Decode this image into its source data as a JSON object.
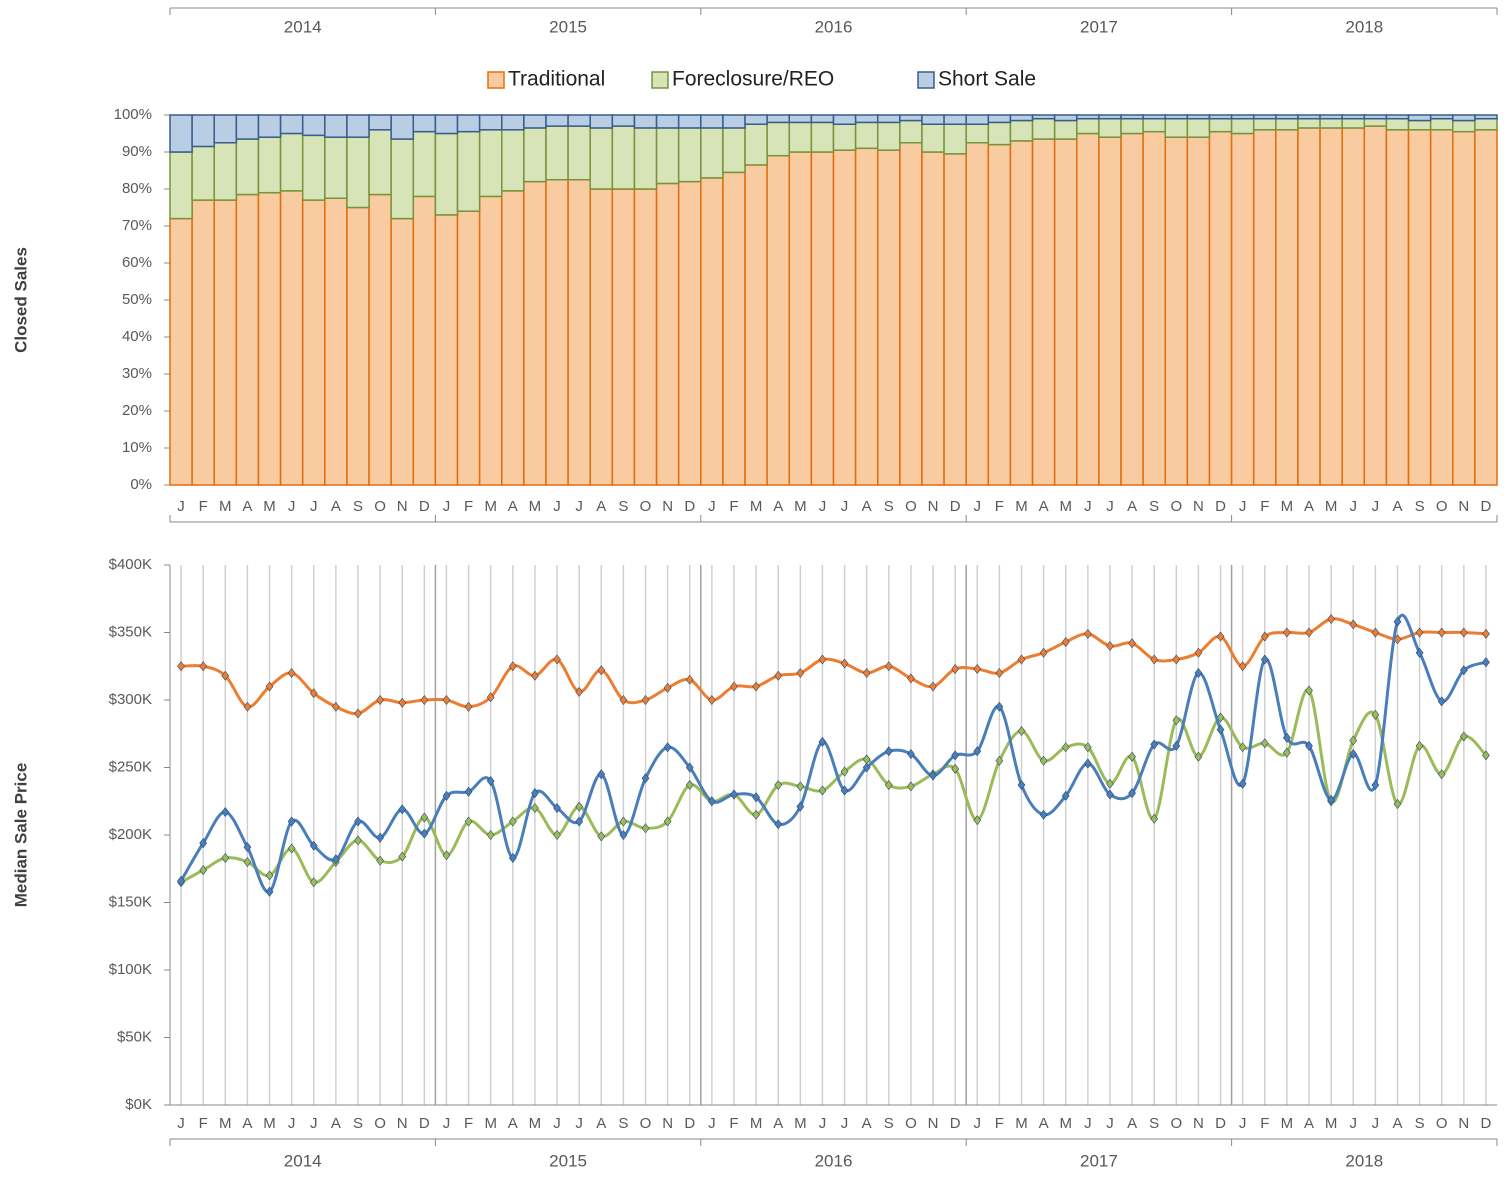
{
  "chart_data": [
    {
      "type": "bar",
      "stacked": true,
      "y_label": "Closed Sales",
      "groups": [
        "2014",
        "2015",
        "2016",
        "2017",
        "2018"
      ],
      "categories": [
        "J",
        "F",
        "M",
        "A",
        "M",
        "J",
        "J",
        "A",
        "S",
        "O",
        "N",
        "D",
        "J",
        "F",
        "M",
        "A",
        "M",
        "J",
        "J",
        "A",
        "S",
        "O",
        "N",
        "D",
        "J",
        "F",
        "M",
        "A",
        "M",
        "J",
        "J",
        "A",
        "S",
        "O",
        "N",
        "D",
        "J",
        "F",
        "M",
        "A",
        "M",
        "J",
        "J",
        "A",
        "S",
        "O",
        "N",
        "D",
        "J",
        "F",
        "M",
        "A",
        "M",
        "J",
        "J",
        "A",
        "S",
        "O",
        "N",
        "D"
      ],
      "ylim": [
        0,
        100
      ],
      "yticks": [
        {
          "value": 0,
          "label": "0%"
        },
        {
          "value": 10,
          "label": "10%"
        },
        {
          "value": 20,
          "label": "20%"
        },
        {
          "value": 30,
          "label": "30%"
        },
        {
          "value": 40,
          "label": "40%"
        },
        {
          "value": 50,
          "label": "50%"
        },
        {
          "value": 60,
          "label": "60%"
        },
        {
          "value": 70,
          "label": "70%"
        },
        {
          "value": 80,
          "label": "80%"
        },
        {
          "value": 90,
          "label": "90%"
        },
        {
          "value": 100,
          "label": "100%"
        }
      ],
      "series": [
        {
          "name": "Traditional",
          "color": "#f9cba1",
          "edge": "#e46c0a",
          "values": [
            72,
            77,
            77,
            78.5,
            79,
            79.5,
            77,
            77.5,
            75,
            78.5,
            72,
            78,
            73,
            74,
            78,
            79.5,
            82,
            82.5,
            82.5,
            80,
            80,
            80,
            81.5,
            82,
            83,
            84.5,
            86.5,
            89,
            90,
            90,
            90.5,
            91,
            90.5,
            92.5,
            90,
            89.5,
            92.5,
            92,
            93,
            93.5,
            93.5,
            95,
            94,
            95,
            95.5,
            94,
            94,
            95.5,
            95,
            96,
            96,
            96.5,
            96.5,
            96.5,
            97,
            96,
            96,
            96,
            95.5,
            96
          ]
        },
        {
          "name": "Foreclosure/REO",
          "color": "#d7e4b7",
          "edge": "#77933c",
          "values": [
            18,
            14.5,
            15.5,
            15,
            15,
            15.5,
            17.5,
            16.5,
            19,
            17.5,
            21.5,
            17.5,
            22,
            21.5,
            18,
            16.5,
            14.5,
            14.5,
            14.5,
            16.5,
            17,
            16.5,
            15,
            14.5,
            13.5,
            12,
            11,
            9,
            8,
            8,
            7,
            7,
            7.5,
            6,
            7.5,
            8,
            5,
            6,
            5.5,
            5.5,
            5,
            4,
            5,
            4,
            3.5,
            5,
            5,
            3.5,
            4,
            3,
            3,
            2.5,
            2.5,
            2.5,
            2,
            3,
            2.5,
            3,
            3,
            3
          ]
        },
        {
          "name": "Short Sale",
          "color": "#b9cde5",
          "edge": "#385d8a",
          "values": [
            10,
            8.5,
            7.5,
            6.5,
            6,
            5,
            5.5,
            6,
            6,
            4,
            6.5,
            4.5,
            5,
            4.5,
            4,
            4,
            3.5,
            3,
            3,
            3.5,
            3,
            3.5,
            3.5,
            3.5,
            3.5,
            3.5,
            2.5,
            2,
            2,
            2,
            2.5,
            2,
            2,
            1.5,
            2.5,
            2.5,
            2.5,
            2,
            1.5,
            1,
            1.5,
            1,
            1,
            1,
            1,
            1,
            1,
            1,
            1,
            1,
            1,
            1,
            1,
            1,
            1,
            1,
            1.5,
            1,
            1.5,
            1
          ]
        }
      ]
    },
    {
      "type": "line",
      "smooth": true,
      "y_label": "Median Sale Price",
      "groups": [
        "2014",
        "2015",
        "2016",
        "2017",
        "2018"
      ],
      "categories": [
        "J",
        "F",
        "M",
        "A",
        "M",
        "J",
        "J",
        "A",
        "S",
        "O",
        "N",
        "D",
        "J",
        "F",
        "M",
        "A",
        "M",
        "J",
        "J",
        "A",
        "S",
        "O",
        "N",
        "D",
        "J",
        "F",
        "M",
        "A",
        "M",
        "J",
        "J",
        "A",
        "S",
        "O",
        "N",
        "D",
        "J",
        "F",
        "M",
        "A",
        "M",
        "J",
        "J",
        "A",
        "S",
        "O",
        "N",
        "D",
        "J",
        "F",
        "M",
        "A",
        "M",
        "J",
        "J",
        "A",
        "S",
        "O",
        "N",
        "D"
      ],
      "ylim": [
        0,
        400000
      ],
      "yticks": [
        {
          "value": 0,
          "label": "$0K"
        },
        {
          "value": 50000,
          "label": "$50K"
        },
        {
          "value": 100000,
          "label": "$100K"
        },
        {
          "value": 150000,
          "label": "$150K"
        },
        {
          "value": 200000,
          "label": "$200K"
        },
        {
          "value": 250000,
          "label": "$250K"
        },
        {
          "value": 300000,
          "label": "$300K"
        },
        {
          "value": 350000,
          "label": "$350K"
        },
        {
          "value": 400000,
          "label": "$400K"
        }
      ],
      "grid": true,
      "series": [
        {
          "color": "#ed7d31",
          "values": [
            325000,
            325000,
            318000,
            295000,
            310000,
            320000,
            305000,
            295000,
            290000,
            300000,
            298000,
            300000,
            300000,
            295000,
            302000,
            325000,
            318000,
            330000,
            306000,
            322000,
            300000,
            300000,
            309000,
            315000,
            300000,
            310000,
            310000,
            318000,
            320000,
            330000,
            327000,
            320000,
            325000,
            316000,
            310000,
            323000,
            323000,
            320000,
            330000,
            335000,
            343000,
            349000,
            340000,
            342000,
            330000,
            330000,
            335000,
            347000,
            325000,
            347000,
            350000,
            350000,
            360000,
            356000,
            350000,
            345000,
            350000,
            350000,
            350000,
            349000
          ]
        },
        {
          "color": "#9bbb59",
          "values": [
            165000,
            174000,
            183000,
            180000,
            170000,
            190000,
            165000,
            180000,
            196000,
            181000,
            184000,
            213000,
            185000,
            210000,
            200000,
            210000,
            220000,
            200000,
            221000,
            199000,
            210000,
            205000,
            210000,
            237000,
            225000,
            230000,
            215000,
            237000,
            236000,
            233000,
            247000,
            256000,
            237000,
            236000,
            245000,
            249000,
            211000,
            255000,
            277000,
            255000,
            265000,
            265000,
            238000,
            258000,
            212000,
            285000,
            258000,
            287000,
            265000,
            268000,
            261000,
            307000,
            225000,
            270000,
            289000,
            223000,
            266000,
            245000,
            273000,
            259000
          ]
        },
        {
          "color": "#4a7ebb",
          "values": [
            166000,
            194000,
            217000,
            191000,
            158000,
            210000,
            192000,
            182000,
            210000,
            198000,
            219000,
            201000,
            229000,
            232000,
            240000,
            183000,
            231000,
            220000,
            210000,
            245000,
            200000,
            242000,
            265000,
            250000,
            225000,
            230000,
            228000,
            208000,
            221000,
            269000,
            233000,
            250000,
            262000,
            260000,
            244000,
            259000,
            262000,
            295000,
            237000,
            215000,
            229000,
            253000,
            230000,
            231000,
            267000,
            266000,
            320000,
            278000,
            238000,
            330000,
            272000,
            266000,
            226000,
            260000,
            237000,
            358000,
            335000,
            299000,
            322000,
            328000
          ]
        }
      ]
    }
  ]
}
